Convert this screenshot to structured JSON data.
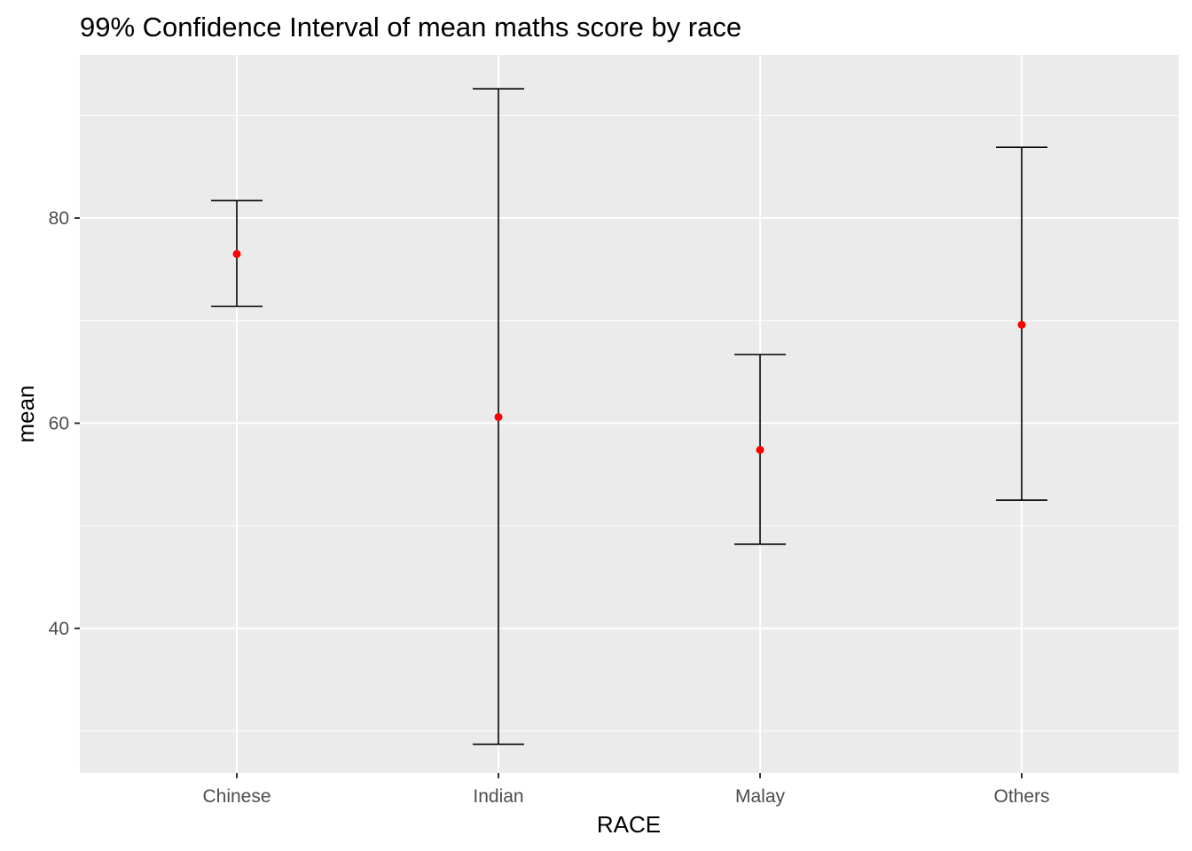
{
  "chart_data": {
    "type": "errorbar",
    "title": "99% Confidence Interval of mean maths score by race",
    "xlabel": "RACE",
    "ylabel": "mean",
    "categories": [
      "Chinese",
      "Indian",
      "Malay",
      "Others"
    ],
    "series": [
      {
        "mean": [
          76.5,
          60.6,
          57.4,
          69.6
        ],
        "lower": [
          71.4,
          28.7,
          48.2,
          52.5
        ],
        "upper": [
          81.7,
          92.6,
          66.7,
          86.9
        ]
      }
    ],
    "ylim": [
      25.9,
      95.9
    ],
    "yticks": [
      40,
      60,
      80
    ],
    "ytick_labels": [
      "40",
      "60",
      "80"
    ],
    "grid": true,
    "panel_background": "#ebebeb",
    "grid_color": "#ffffff",
    "errorbar_color": "#000000",
    "point_color": "#ff0000"
  }
}
